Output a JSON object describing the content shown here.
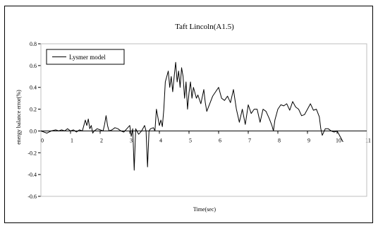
{
  "chart_data": {
    "type": "line",
    "title": "Taft Lincoln(A1.5)",
    "xlabel": "Time(sec)",
    "ylabel": "energy balance error(%)",
    "xlim": [
      0,
      11
    ],
    "ylim": [
      -0.6,
      0.8
    ],
    "xticks": [
      "0",
      "1",
      "2",
      "3",
      "4",
      "5",
      "6",
      "7",
      "8",
      "9",
      "10",
      "11"
    ],
    "yticks": [
      "0.8",
      "0.6",
      "0.4",
      "0.2",
      "0.0",
      "-0.2",
      "-0.4",
      "-0.6"
    ],
    "grid": false,
    "legend_position": "top-left",
    "series": [
      {
        "name": "Lysmer model",
        "color": "#000000",
        "x": [
          0,
          0.2,
          0.35,
          0.5,
          0.6,
          0.7,
          0.8,
          0.9,
          1.0,
          1.1,
          1.2,
          1.3,
          1.4,
          1.5,
          1.55,
          1.6,
          1.65,
          1.7,
          1.75,
          1.8,
          1.9,
          2.0,
          2.1,
          2.15,
          2.2,
          2.25,
          2.3,
          2.4,
          2.5,
          2.6,
          2.7,
          2.8,
          2.9,
          3.0,
          3.05,
          3.1,
          3.15,
          3.2,
          3.3,
          3.4,
          3.5,
          3.55,
          3.6,
          3.65,
          3.7,
          3.8,
          3.85,
          3.9,
          4.0,
          4.05,
          4.1,
          4.15,
          4.2,
          4.3,
          4.35,
          4.4,
          4.45,
          4.5,
          4.55,
          4.6,
          4.65,
          4.7,
          4.75,
          4.8,
          4.85,
          4.9,
          4.95,
          5.0,
          5.05,
          5.1,
          5.15,
          5.2,
          5.25,
          5.3,
          5.4,
          5.5,
          5.55,
          5.6,
          5.7,
          5.8,
          5.9,
          6.0,
          6.1,
          6.2,
          6.3,
          6.4,
          6.5,
          6.6,
          6.7,
          6.8,
          6.9,
          7.0,
          7.1,
          7.2,
          7.3,
          7.4,
          7.5,
          7.6,
          7.7,
          7.8,
          7.85,
          7.9,
          8.0,
          8.1,
          8.2,
          8.3,
          8.4,
          8.5,
          8.6,
          8.7,
          8.8,
          8.9,
          9.0,
          9.1,
          9.2,
          9.3,
          9.4,
          9.45,
          9.5,
          9.6,
          9.7,
          9.8,
          9.9,
          10.0,
          10.1,
          10.2
        ],
        "y": [
          0.0,
          -0.02,
          0.0,
          0.01,
          0.0,
          0.01,
          0.0,
          0.02,
          0.0,
          0.01,
          -0.01,
          0.01,
          0.0,
          0.1,
          0.05,
          0.11,
          0.02,
          0.05,
          -0.02,
          0.0,
          0.02,
          0.01,
          0.0,
          0.06,
          0.14,
          0.05,
          0.0,
          0.01,
          0.03,
          0.02,
          0.0,
          -0.01,
          0.02,
          0.05,
          -0.05,
          0.02,
          -0.36,
          0.02,
          -0.03,
          0.0,
          0.05,
          0.0,
          -0.33,
          0.0,
          0.02,
          0.03,
          0.0,
          0.2,
          0.05,
          0.1,
          0.04,
          0.2,
          0.45,
          0.55,
          0.4,
          0.5,
          0.36,
          0.5,
          0.63,
          0.45,
          0.55,
          0.4,
          0.58,
          0.5,
          0.3,
          0.45,
          0.2,
          0.35,
          0.45,
          0.3,
          0.4,
          0.35,
          0.3,
          0.33,
          0.25,
          0.38,
          0.26,
          0.18,
          0.25,
          0.32,
          0.36,
          0.4,
          0.3,
          0.28,
          0.32,
          0.26,
          0.38,
          0.2,
          0.08,
          0.2,
          0.06,
          0.24,
          0.16,
          0.2,
          0.2,
          0.08,
          0.2,
          0.18,
          0.12,
          0.05,
          0.0,
          0.1,
          0.2,
          0.24,
          0.23,
          0.25,
          0.19,
          0.27,
          0.22,
          0.2,
          0.14,
          0.15,
          0.2,
          0.25,
          0.19,
          0.2,
          0.13,
          0.02,
          -0.04,
          0.02,
          0.02,
          0.0,
          -0.01,
          0.0,
          -0.05,
          -0.1
        ]
      }
    ]
  }
}
